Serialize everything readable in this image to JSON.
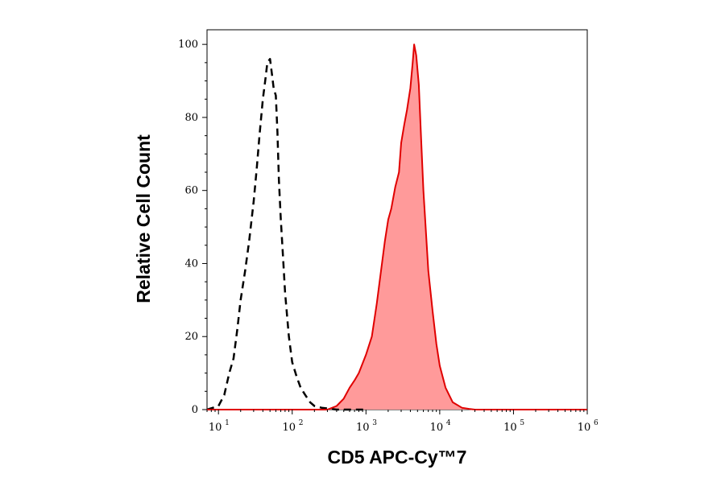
{
  "chart_data": {
    "type": "area",
    "xlabel": "CD5 APC-Cy™7",
    "ylabel": "Relative Cell Count",
    "xscale": "log",
    "xlim": [
      7,
      1000000
    ],
    "ylim": [
      0,
      104
    ],
    "yticks": [
      0,
      20,
      40,
      60,
      80,
      100
    ],
    "xticks": [
      {
        "base": "10",
        "exp": "1",
        "value": 10
      },
      {
        "base": "10",
        "exp": "2",
        "value": 100
      },
      {
        "base": "10",
        "exp": "3",
        "value": 1000
      },
      {
        "base": "10",
        "exp": "4",
        "value": 10000
      },
      {
        "base": "10",
        "exp": "5",
        "value": 100000
      },
      {
        "base": "10",
        "exp": "6",
        "value": 1000000
      }
    ],
    "series": [
      {
        "style": "dashed",
        "color": "#000000",
        "fill": "none",
        "x": [
          7,
          10,
          12,
          14,
          16,
          18,
          20,
          23,
          26,
          30,
          33,
          36,
          40,
          43,
          46,
          50,
          53,
          56,
          60,
          63,
          66,
          70,
          75,
          80,
          90,
          100,
          115,
          130,
          150,
          175,
          200,
          250,
          300,
          400,
          600,
          1000
        ],
        "y": [
          0,
          1,
          4,
          10,
          14,
          22,
          30,
          38,
          46,
          57,
          66,
          75,
          85,
          90,
          95,
          96,
          92,
          88,
          86,
          76,
          63,
          52,
          42,
          32,
          20,
          13,
          9,
          6,
          4,
          2,
          1,
          0.5,
          0.3,
          0,
          0,
          0
        ]
      },
      {
        "style": "solid",
        "color": "#e00000",
        "fill": "#ff9a9a",
        "x": [
          7,
          200,
          300,
          400,
          500,
          600,
          700,
          800,
          1000,
          1200,
          1400,
          1600,
          1800,
          2000,
          2200,
          2500,
          2800,
          3000,
          3300,
          3600,
          4000,
          4300,
          4500,
          4800,
          5200,
          5600,
          6000,
          7000,
          8000,
          9000,
          10000,
          12000,
          15000,
          20000,
          25000,
          30000,
          50000,
          100000,
          1000000
        ],
        "y": [
          0,
          0,
          0,
          1,
          3,
          6,
          8,
          10,
          15,
          20,
          29,
          38,
          46,
          52,
          55,
          61,
          65,
          73,
          78,
          82,
          88,
          95,
          100,
          97,
          89,
          74,
          60,
          38,
          27,
          18,
          12,
          6,
          2,
          0.5,
          0.2,
          0,
          0,
          0,
          0
        ]
      }
    ]
  }
}
